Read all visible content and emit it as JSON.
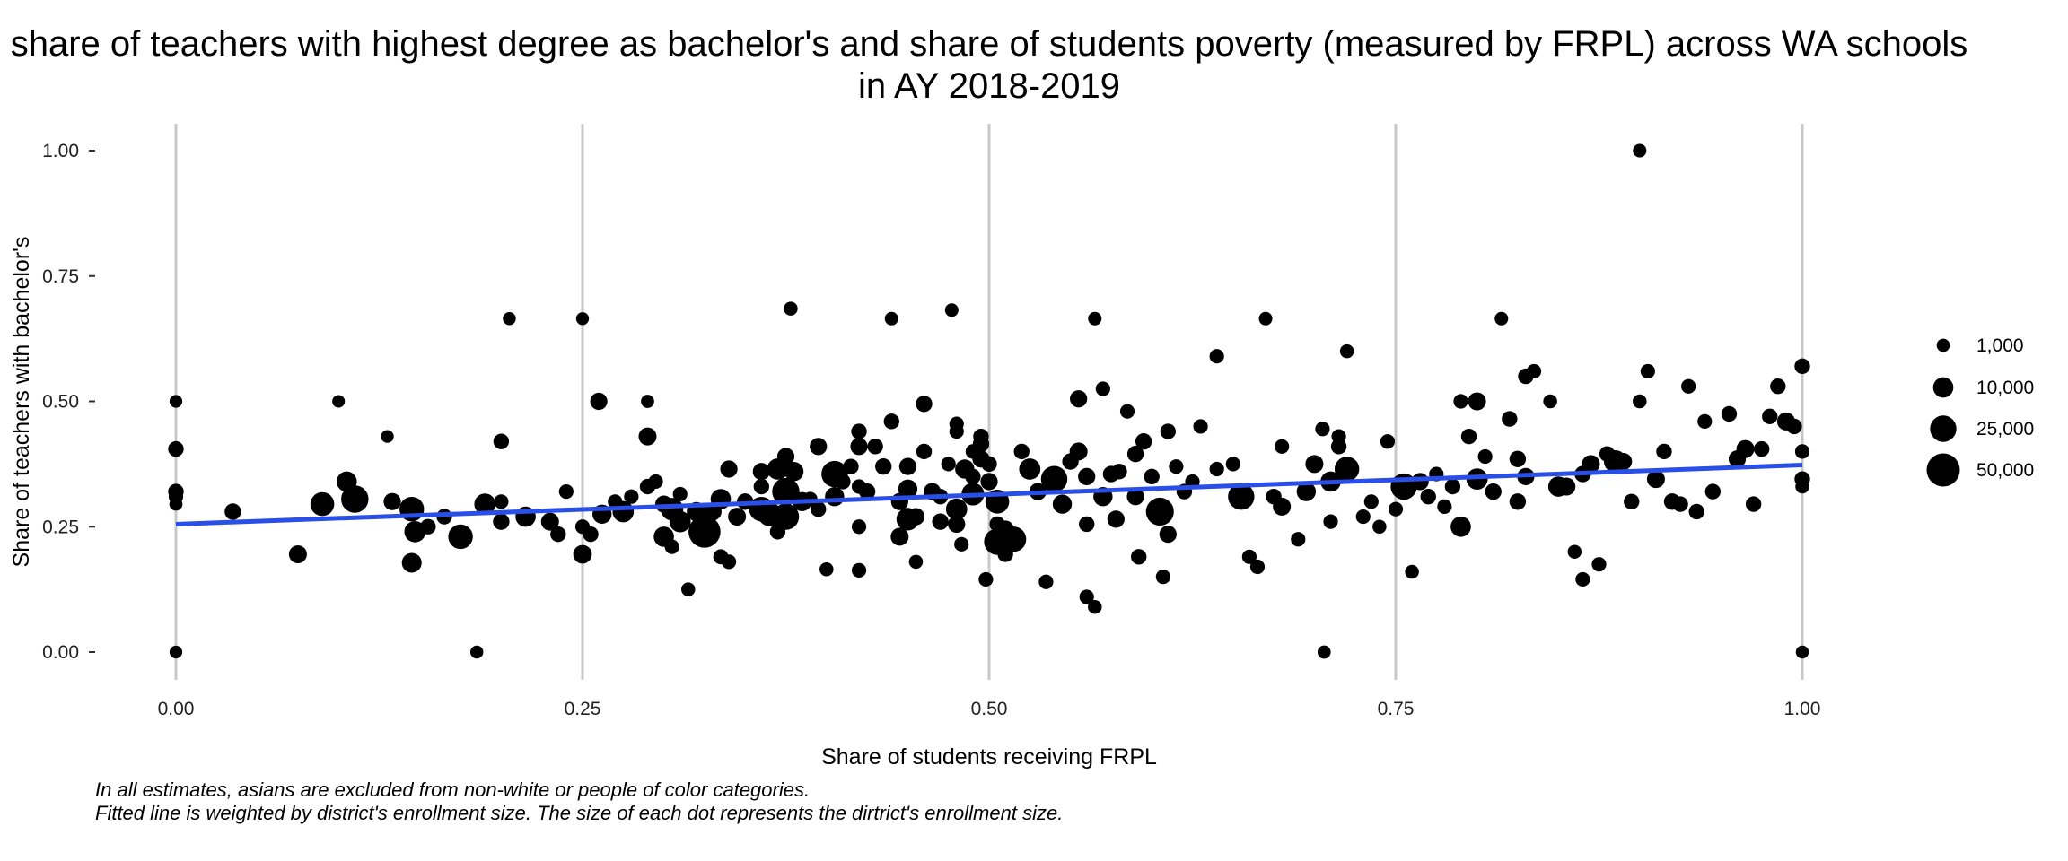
{
  "chart_data": {
    "type": "scatter",
    "title_line1": "share of teachers with highest degree as bachelor's and share of students poverty (measured by FRPL) across WA schools",
    "title_line2": "in AY 2018-2019",
    "xlabel": "Share of students receiving FRPL",
    "ylabel": "Share of teachers with bachelor's",
    "xlim": [
      0,
      1
    ],
    "ylim": [
      0,
      1
    ],
    "x_ticks": [
      0,
      0.25,
      0.5,
      0.75,
      1
    ],
    "x_tick_labels": [
      "0.00",
      "0.25",
      "0.50",
      "0.75",
      "1.00"
    ],
    "y_ticks": [
      0,
      0.25,
      0.5,
      0.75,
      1
    ],
    "y_tick_labels": [
      "0.00",
      "0.25",
      "0.50",
      "0.75",
      "1.00"
    ],
    "grid": "vertical major lines only",
    "legend_position": "right",
    "legend": [
      {
        "label": "1,000",
        "size": 1000
      },
      {
        "label": "10,000",
        "size": 10000
      },
      {
        "label": "25,000",
        "size": 25000
      },
      {
        "label": "50,000",
        "size": 50000
      }
    ],
    "fit_line": {
      "x": [
        0,
        1
      ],
      "y": [
        0.255,
        0.373
      ],
      "color": "#2a4ee8"
    },
    "point_color": "#000000",
    "points": [
      [
        0.0,
        0.5,
        800
      ],
      [
        0.0,
        0.405,
        3000
      ],
      [
        0.0,
        0.32,
        3000
      ],
      [
        0.0,
        0.31,
        2000
      ],
      [
        0.0,
        0.295,
        1000
      ],
      [
        0.0,
        0.0,
        800
      ],
      [
        0.035,
        0.28,
        4000
      ],
      [
        0.075,
        0.195,
        6000
      ],
      [
        0.09,
        0.295,
        18000
      ],
      [
        0.1,
        0.5,
        700
      ],
      [
        0.105,
        0.34,
        10000
      ],
      [
        0.11,
        0.305,
        28000
      ],
      [
        0.13,
        0.43,
        800
      ],
      [
        0.133,
        0.3,
        5000
      ],
      [
        0.145,
        0.285,
        20000
      ],
      [
        0.147,
        0.24,
        12000
      ],
      [
        0.145,
        0.178,
        9000
      ],
      [
        0.155,
        0.25,
        3000
      ],
      [
        0.165,
        0.27,
        3000
      ],
      [
        0.175,
        0.23,
        20000
      ],
      [
        0.185,
        0.0,
        900
      ],
      [
        0.19,
        0.295,
        12000
      ],
      [
        0.2,
        0.3,
        2000
      ],
      [
        0.2,
        0.26,
        4000
      ],
      [
        0.2,
        0.42,
        3000
      ],
      [
        0.205,
        0.665,
        900
      ],
      [
        0.215,
        0.27,
        10000
      ],
      [
        0.23,
        0.26,
        6000
      ],
      [
        0.235,
        0.235,
        3000
      ],
      [
        0.24,
        0.32,
        2000
      ],
      [
        0.25,
        0.665,
        800
      ],
      [
        0.25,
        0.25,
        2000
      ],
      [
        0.25,
        0.195,
        7000
      ],
      [
        0.255,
        0.235,
        3000
      ],
      [
        0.26,
        0.5,
        5000
      ],
      [
        0.262,
        0.275,
        8000
      ],
      [
        0.27,
        0.3,
        2000
      ],
      [
        0.275,
        0.28,
        12000
      ],
      [
        0.28,
        0.31,
        2000
      ],
      [
        0.29,
        0.5,
        1000
      ],
      [
        0.29,
        0.43,
        6000
      ],
      [
        0.295,
        0.34,
        2000
      ],
      [
        0.29,
        0.33,
        3000
      ],
      [
        0.3,
        0.295,
        5000
      ],
      [
        0.305,
        0.285,
        15000
      ],
      [
        0.3,
        0.23,
        10000
      ],
      [
        0.305,
        0.21,
        2000
      ],
      [
        0.31,
        0.315,
        2000
      ],
      [
        0.31,
        0.26,
        12000
      ],
      [
        0.315,
        0.125,
        1500
      ],
      [
        0.32,
        0.28,
        8000
      ],
      [
        0.325,
        0.24,
        45000
      ],
      [
        0.33,
        0.28,
        6000
      ],
      [
        0.335,
        0.305,
        10000
      ],
      [
        0.335,
        0.19,
        2500
      ],
      [
        0.34,
        0.365,
        5000
      ],
      [
        0.34,
        0.18,
        2000
      ],
      [
        0.345,
        0.27,
        6000
      ],
      [
        0.35,
        0.3,
        4000
      ],
      [
        0.36,
        0.36,
        5000
      ],
      [
        0.36,
        0.33,
        3000
      ],
      [
        0.36,
        0.285,
        20000
      ],
      [
        0.365,
        0.275,
        18000
      ],
      [
        0.37,
        0.365,
        12000
      ],
      [
        0.37,
        0.24,
        3000
      ],
      [
        0.375,
        0.32,
        28000
      ],
      [
        0.375,
        0.27,
        25000
      ],
      [
        0.375,
        0.39,
        5000
      ],
      [
        0.38,
        0.36,
        8000
      ],
      [
        0.378,
        0.685,
        1500
      ],
      [
        0.385,
        0.3,
        8000
      ],
      [
        0.39,
        0.305,
        2000
      ],
      [
        0.395,
        0.285,
        3000
      ],
      [
        0.395,
        0.41,
        5000
      ],
      [
        0.4,
        0.165,
        1500
      ],
      [
        0.405,
        0.31,
        8000
      ],
      [
        0.405,
        0.355,
        25000
      ],
      [
        0.41,
        0.34,
        3000
      ],
      [
        0.415,
        0.37,
        3000
      ],
      [
        0.42,
        0.44,
        3000
      ],
      [
        0.42,
        0.41,
        5000
      ],
      [
        0.42,
        0.33,
        2000
      ],
      [
        0.42,
        0.25,
        2000
      ],
      [
        0.42,
        0.163,
        2000
      ],
      [
        0.425,
        0.32,
        4000
      ],
      [
        0.43,
        0.41,
        3000
      ],
      [
        0.435,
        0.37,
        4000
      ],
      [
        0.44,
        0.46,
        3000
      ],
      [
        0.44,
        0.665,
        1200
      ],
      [
        0.445,
        0.3,
        5000
      ],
      [
        0.445,
        0.23,
        6000
      ],
      [
        0.45,
        0.265,
        15000
      ],
      [
        0.45,
        0.37,
        5000
      ],
      [
        0.45,
        0.325,
        8000
      ],
      [
        0.455,
        0.18,
        1500
      ],
      [
        0.455,
        0.27,
        5000
      ],
      [
        0.46,
        0.495,
        4000
      ],
      [
        0.46,
        0.4,
        3000
      ],
      [
        0.465,
        0.32,
        5000
      ],
      [
        0.47,
        0.26,
        4000
      ],
      [
        0.47,
        0.31,
        3000
      ],
      [
        0.475,
        0.375,
        2000
      ],
      [
        0.48,
        0.455,
        2000
      ],
      [
        0.48,
        0.44,
        2000
      ],
      [
        0.48,
        0.285,
        12000
      ],
      [
        0.48,
        0.255,
        5000
      ],
      [
        0.483,
        0.215,
        2000
      ],
      [
        0.485,
        0.365,
        8000
      ],
      [
        0.477,
        0.682,
        1200
      ],
      [
        0.49,
        0.4,
        2000
      ],
      [
        0.49,
        0.35,
        3000
      ],
      [
        0.49,
        0.315,
        15000
      ],
      [
        0.495,
        0.43,
        3000
      ],
      [
        0.495,
        0.415,
        4000
      ],
      [
        0.495,
        0.385,
        5000
      ],
      [
        0.498,
        0.145,
        2000
      ],
      [
        0.5,
        0.34,
        5000
      ],
      [
        0.5,
        0.375,
        3000
      ],
      [
        0.505,
        0.3,
        18000
      ],
      [
        0.505,
        0.255,
        3000
      ],
      [
        0.505,
        0.22,
        25000
      ],
      [
        0.51,
        0.245,
        5000
      ],
      [
        0.51,
        0.195,
        3000
      ],
      [
        0.515,
        0.225,
        22000
      ],
      [
        0.52,
        0.4,
        3000
      ],
      [
        0.525,
        0.365,
        12000
      ],
      [
        0.53,
        0.32,
        5000
      ],
      [
        0.535,
        0.14,
        2000
      ],
      [
        0.54,
        0.345,
        25000
      ],
      [
        0.545,
        0.295,
        8000
      ],
      [
        0.55,
        0.38,
        4000
      ],
      [
        0.555,
        0.4,
        6000
      ],
      [
        0.555,
        0.505,
        5000
      ],
      [
        0.56,
        0.35,
        5000
      ],
      [
        0.56,
        0.255,
        3000
      ],
      [
        0.56,
        0.11,
        2000
      ],
      [
        0.565,
        0.09,
        1500
      ],
      [
        0.565,
        0.665,
        1200
      ],
      [
        0.57,
        0.525,
        2000
      ],
      [
        0.57,
        0.31,
        8000
      ],
      [
        0.575,
        0.355,
        4000
      ],
      [
        0.578,
        0.265,
        5000
      ],
      [
        0.58,
        0.36,
        3000
      ],
      [
        0.585,
        0.48,
        2000
      ],
      [
        0.59,
        0.31,
        5000
      ],
      [
        0.59,
        0.395,
        4000
      ],
      [
        0.592,
        0.19,
        3000
      ],
      [
        0.595,
        0.42,
        4000
      ],
      [
        0.6,
        0.35,
        3000
      ],
      [
        0.605,
        0.28,
        30000
      ],
      [
        0.607,
        0.15,
        2000
      ],
      [
        0.61,
        0.44,
        3000
      ],
      [
        0.61,
        0.235,
        5000
      ],
      [
        0.615,
        0.37,
        2000
      ],
      [
        0.62,
        0.32,
        3000
      ],
      [
        0.625,
        0.34,
        2000
      ],
      [
        0.63,
        0.45,
        2000
      ],
      [
        0.64,
        0.59,
        2000
      ],
      [
        0.64,
        0.365,
        2000
      ],
      [
        0.65,
        0.375,
        2000
      ],
      [
        0.655,
        0.31,
        25000
      ],
      [
        0.66,
        0.19,
        2000
      ],
      [
        0.665,
        0.17,
        2000
      ],
      [
        0.67,
        0.665,
        1200
      ],
      [
        0.675,
        0.31,
        3000
      ],
      [
        0.68,
        0.29,
        6000
      ],
      [
        0.68,
        0.41,
        2000
      ],
      [
        0.69,
        0.225,
        2000
      ],
      [
        0.695,
        0.32,
        8000
      ],
      [
        0.7,
        0.375,
        6000
      ],
      [
        0.705,
        0.445,
        2000
      ],
      [
        0.706,
        0.0,
        1000
      ],
      [
        0.71,
        0.26,
        2000
      ],
      [
        0.71,
        0.34,
        10000
      ],
      [
        0.715,
        0.43,
        2000
      ],
      [
        0.715,
        0.41,
        3000
      ],
      [
        0.72,
        0.6,
        1500
      ],
      [
        0.72,
        0.365,
        20000
      ],
      [
        0.73,
        0.27,
        2000
      ],
      [
        0.735,
        0.3,
        2000
      ],
      [
        0.74,
        0.25,
        1500
      ],
      [
        0.745,
        0.42,
        2000
      ],
      [
        0.75,
        0.285,
        2000
      ],
      [
        0.755,
        0.33,
        25000
      ],
      [
        0.76,
        0.16,
        1500
      ],
      [
        0.765,
        0.34,
        5000
      ],
      [
        0.77,
        0.31,
        3000
      ],
      [
        0.775,
        0.355,
        2000
      ],
      [
        0.78,
        0.29,
        2000
      ],
      [
        0.785,
        0.33,
        3000
      ],
      [
        0.79,
        0.25,
        10000
      ],
      [
        0.79,
        0.5,
        2000
      ],
      [
        0.795,
        0.43,
        3000
      ],
      [
        0.8,
        0.345,
        12000
      ],
      [
        0.8,
        0.5,
        6000
      ],
      [
        0.805,
        0.39,
        2000
      ],
      [
        0.81,
        0.32,
        4000
      ],
      [
        0.815,
        0.665,
        1200
      ],
      [
        0.82,
        0.465,
        3000
      ],
      [
        0.825,
        0.3,
        4000
      ],
      [
        0.825,
        0.385,
        4000
      ],
      [
        0.83,
        0.35,
        5000
      ],
      [
        0.83,
        0.55,
        3000
      ],
      [
        0.835,
        0.56,
        2000
      ],
      [
        0.845,
        0.5,
        1500
      ],
      [
        0.85,
        0.33,
        10000
      ],
      [
        0.855,
        0.33,
        6000
      ],
      [
        0.86,
        0.2,
        1500
      ],
      [
        0.865,
        0.145,
        2000
      ],
      [
        0.865,
        0.355,
        4000
      ],
      [
        0.87,
        0.375,
        6000
      ],
      [
        0.875,
        0.175,
        2000
      ],
      [
        0.88,
        0.395,
        3000
      ],
      [
        0.885,
        0.38,
        15000
      ],
      [
        0.89,
        0.38,
        5000
      ],
      [
        0.895,
        0.3,
        3000
      ],
      [
        0.9,
        1.0,
        1200
      ],
      [
        0.9,
        0.5,
        1500
      ],
      [
        0.905,
        0.56,
        2000
      ],
      [
        0.91,
        0.345,
        6000
      ],
      [
        0.915,
        0.4,
        3000
      ],
      [
        0.92,
        0.3,
        4000
      ],
      [
        0.925,
        0.295,
        3000
      ],
      [
        0.93,
        0.53,
        2000
      ],
      [
        0.935,
        0.28,
        3000
      ],
      [
        0.94,
        0.46,
        2000
      ],
      [
        0.945,
        0.32,
        3000
      ],
      [
        0.955,
        0.475,
        3000
      ],
      [
        0.96,
        0.385,
        5000
      ],
      [
        0.965,
        0.405,
        6000
      ],
      [
        0.97,
        0.295,
        3000
      ],
      [
        0.975,
        0.405,
        3000
      ],
      [
        0.98,
        0.47,
        3000
      ],
      [
        0.985,
        0.53,
        3000
      ],
      [
        0.99,
        0.46,
        6000
      ],
      [
        0.995,
        0.45,
        3000
      ],
      [
        1.0,
        0.57,
        3000
      ],
      [
        1.0,
        0.4,
        2000
      ],
      [
        1.0,
        0.345,
        3000
      ],
      [
        1.0,
        0.33,
        1500
      ],
      [
        1.0,
        0.0,
        900
      ]
    ]
  },
  "captions": {
    "line1": "In all estimates, asians are excluded from non-white or people of color categories.",
    "line2": "Fitted line is weighted by district's enrollment size. The size of each dot represents the dirtrict's enrollment size."
  }
}
